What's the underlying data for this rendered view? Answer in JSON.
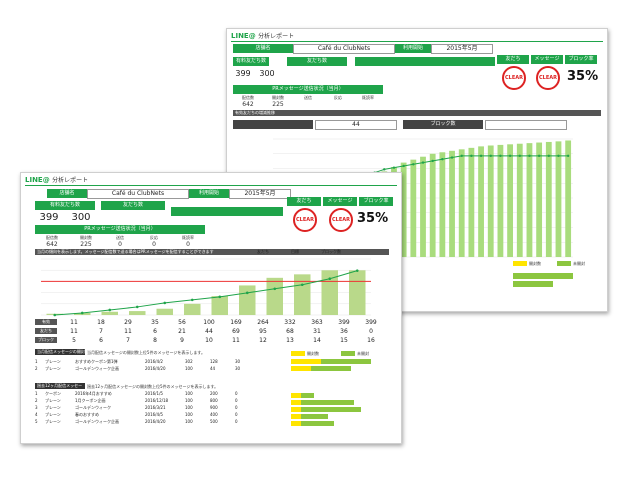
{
  "report": {
    "logo": "LINE@",
    "title": "分析レポート",
    "store_label": "店舗名",
    "store_name": "Café du ClubNets",
    "period_label": "利用開始",
    "period_value": "2015年5月",
    "friends_label": "有料友だち数",
    "friends_current": "399",
    "friends_max": "300",
    "plan_label": "友だち数",
    "badge_friends": "友だち",
    "badge_message": "メッセージ",
    "badge_block": "ブロック率",
    "stamp_text": "CLEAR",
    "block_rate": "35%",
    "msg_section_label": "PRメッセージ送信状況（当月）",
    "msg_headers": [
      "配信数",
      "開封数",
      "送信",
      "反応",
      "既読率"
    ],
    "msg_values": [
      "642",
      "225",
      "0",
      "0",
      "0"
    ],
    "block_trend_label": "有効友だちの増減推移",
    "block_count_back": "44",
    "block_count_label_back": "ブロック数",
    "legend_friends": "友だち",
    "legend_target": "目標",
    "legend_block": "ブロック数",
    "chart_note": "当月の傾向を表示します。メッセージ配信数で送る場合はPRメッセージを配信することができます",
    "coupon_title_1": "当月配信メッセージの開封数上位5件",
    "coupon_title_2": "過去12ヶ月配信メッセージの開封数上位5件",
    "coupon_desc": "当月配信メッセージの開封数上位5件のメッセージを表示します。",
    "coupon_desc_2": "過去12ヶ月配信メッセージの開封数上位5件のメッセージを表示します。",
    "legend_open": "開封数",
    "legend_unopen": "未開封"
  },
  "front_rows": {
    "labels": [
      "有効",
      "友だち",
      "ブロック",
      "前月比"
    ],
    "row1": [
      "11",
      "18",
      "29",
      "35",
      "56",
      "100",
      "169",
      "264",
      "332",
      "363",
      "399",
      "399"
    ],
    "row2": [
      "11",
      "7",
      "11",
      "6",
      "21",
      "44",
      "69",
      "95",
      "68",
      "31",
      "36",
      "0"
    ],
    "row3": [
      "5",
      "6",
      "7",
      "8",
      "9",
      "10",
      "11",
      "12",
      "13",
      "14",
      "15",
      "16"
    ]
  },
  "coupons_front": [
    {
      "no": "1",
      "type": "ブレーン",
      "title": "おすすめクーポン第1弾",
      "date": "2016/4/2",
      "a": "302",
      "b": "128",
      "c": "0",
      "d": "30",
      "e": "0"
    },
    {
      "no": "2",
      "type": "ブレーン",
      "title": "ゴールデンウィーク企画",
      "date": "2016/4/20",
      "a": "100",
      "b": "44",
      "c": "0",
      "d": "30",
      "e": "0"
    }
  ],
  "coupons_front_2": [
    {
      "no": "1",
      "type": "クーポン",
      "title": "2016年4月おすすめ",
      "date": "2016/1/5",
      "a": "100",
      "b": "200",
      "c": "0",
      "d": "0",
      "e": "0"
    },
    {
      "no": "2",
      "type": "ブレーン",
      "title": "1月クーポン企画",
      "date": "2016/12/18",
      "a": "100",
      "b": "800",
      "c": "0",
      "d": "0",
      "e": "0"
    },
    {
      "no": "3",
      "type": "ブレーン",
      "title": "ゴールデンウィーク",
      "date": "2016/3/21",
      "a": "100",
      "b": "900",
      "c": "0",
      "d": "0",
      "e": "0"
    },
    {
      "no": "4",
      "type": "ブレーン",
      "title": "春のおすすめ",
      "date": "2016/4/5",
      "a": "100",
      "b": "400",
      "c": "0",
      "d": "0",
      "e": "0"
    },
    {
      "no": "5",
      "type": "ブレーン",
      "title": "ゴールデンウィーク企画",
      "date": "2016/4/20",
      "a": "100",
      "b": "500",
      "c": "0",
      "d": "0",
      "e": "0"
    }
  ],
  "coupons_back": [
    {
      "a": "302",
      "b": "128",
      "c": "0",
      "d": "0",
      "e": "0"
    },
    {
      "a": "400",
      "b": "100",
      "c": "0",
      "d": "0",
      "e": "0"
    }
  ],
  "chart_data": [
    {
      "type": "bar",
      "title": "有効友だちの増減推移",
      "series": [
        {
          "name": "友だち",
          "values": [
            11,
            18,
            29,
            35,
            56,
            100,
            169,
            264,
            332,
            363,
            399,
            399
          ]
        },
        {
          "name": "ブロック数",
          "values": [
            0,
            2,
            5,
            8,
            12,
            15,
            18,
            22,
            26,
            30,
            36,
            44
          ]
        }
      ],
      "target": 300,
      "ylim": [
        0,
        500
      ]
    },
    {
      "type": "bar",
      "title": "有効友だちの増減推移",
      "series": [
        {
          "name": "友だち",
          "values": [
            20,
            60,
            110,
            150,
            180,
            200,
            215,
            230,
            245,
            260,
            275,
            290,
            305,
            320,
            330,
            340,
            350,
            355,
            360,
            365,
            370,
            375,
            378,
            380,
            382,
            384,
            386,
            388,
            390,
            392,
            395
          ]
        },
        {
          "name": "ブロック数",
          "values": [
            51,
            51.2,
            51.4,
            51.6,
            51.8,
            52,
            52.1,
            52.2,
            52.3,
            52.4,
            52.5,
            52.6,
            52.65,
            52.7,
            52.75,
            52.8,
            52.85,
            52.9,
            52.95,
            53,
            53,
            53,
            53,
            53,
            53,
            53,
            53,
            53,
            53,
            53,
            53
          ]
        }
      ],
      "ylim": [
        0,
        400
      ],
      "y2lim": [
        50,
        53.5
      ]
    }
  ]
}
